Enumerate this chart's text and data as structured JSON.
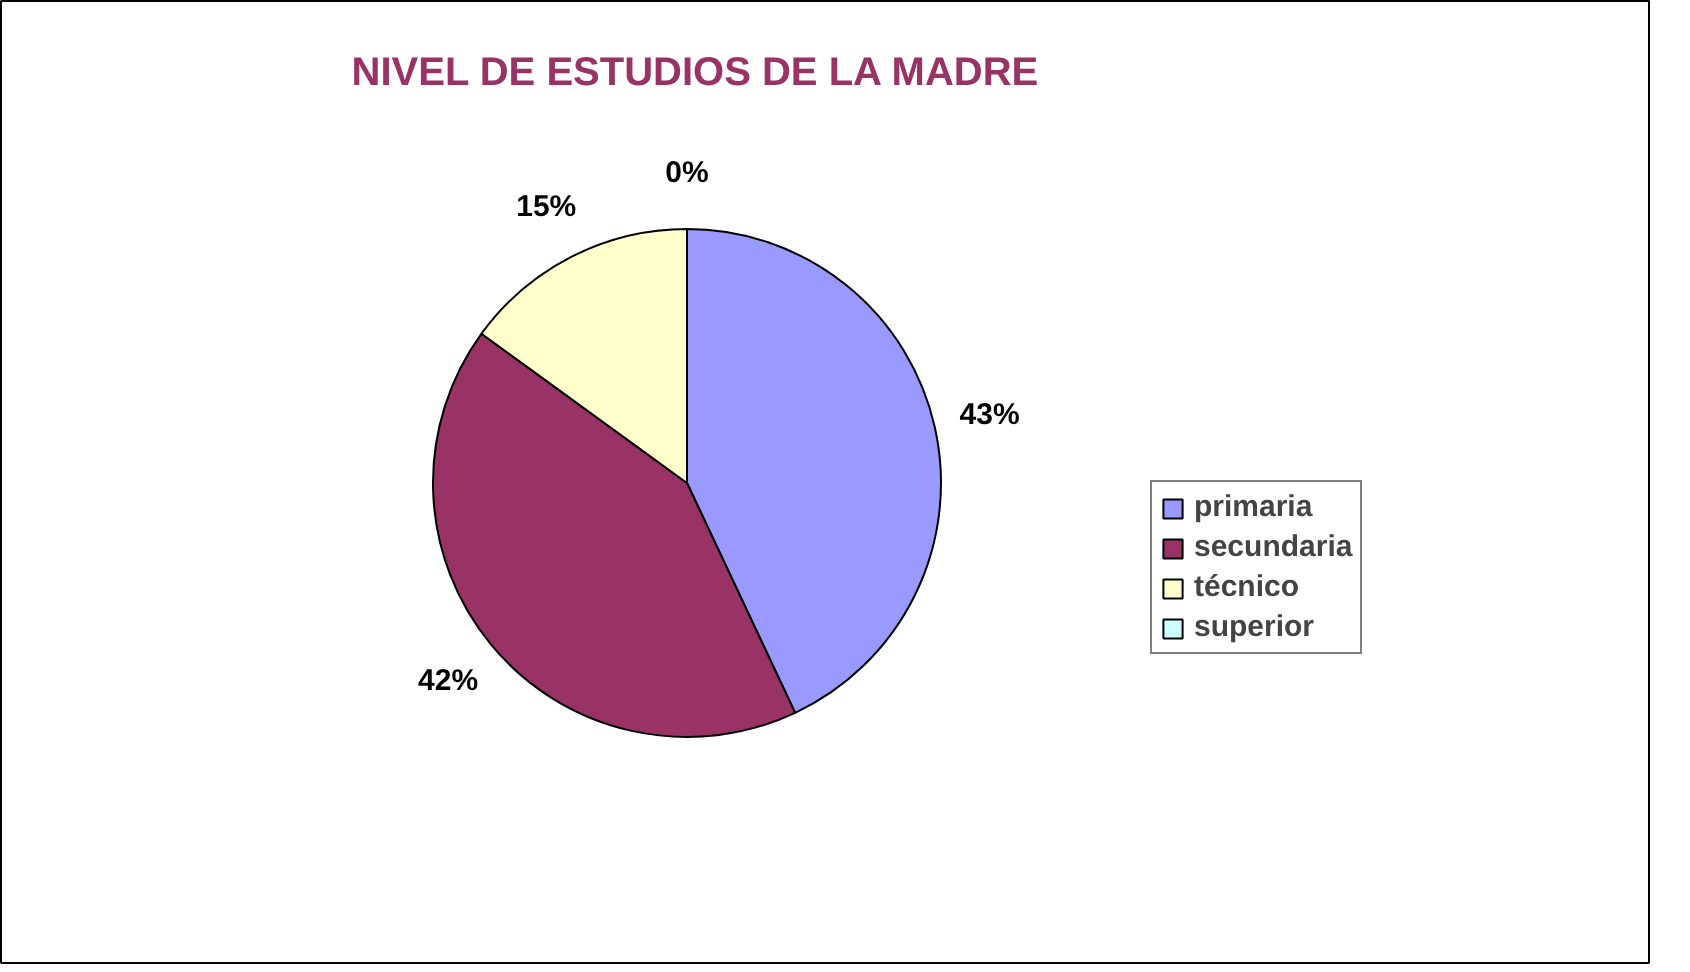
{
  "chart_data": {
    "type": "pie",
    "title": "NIVEL DE ESTUDIOS DE LA MADRE",
    "categories": [
      "primaria",
      "secundaria",
      "técnico",
      "superior"
    ],
    "values": [
      43,
      42,
      15,
      0
    ],
    "colors": [
      "#9999ff",
      "#993366",
      "#ffffcc",
      "#ccffff"
    ],
    "value_labels": [
      "43%",
      "42%",
      "15%",
      "0%"
    ],
    "legend": "right"
  }
}
